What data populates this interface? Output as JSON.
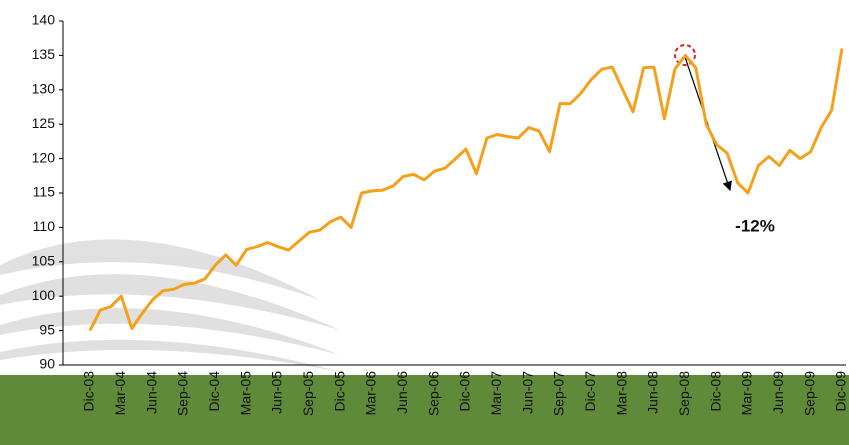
{
  "chart_data": {
    "type": "line",
    "annotation": "-12%",
    "categories": [
      "Dic-03",
      null,
      null,
      "Mar-04",
      null,
      null,
      "Jun-04",
      null,
      null,
      "Sep-04",
      null,
      null,
      "Dic-04",
      null,
      null,
      "Mar-05",
      null,
      null,
      "Jun-05",
      null,
      null,
      "Sep-05",
      null,
      null,
      "Dic-05",
      null,
      null,
      "Mar-06",
      null,
      null,
      "Jun-06",
      null,
      null,
      "Sep-06",
      null,
      null,
      "Dic-06",
      null,
      null,
      "Mar-07",
      null,
      null,
      "Jun-07",
      null,
      null,
      "Sep-07",
      null,
      null,
      "Dic-07",
      null,
      null,
      "Mar-08",
      null,
      null,
      "Jun-08",
      null,
      null,
      "Sep-08",
      null,
      null,
      "Dic-08",
      null,
      null,
      "Mar-09",
      null,
      null,
      "Jun-09",
      null,
      null,
      "Sep-09",
      null,
      null,
      "Dic-09"
    ],
    "values": [
      95,
      98,
      98.5,
      100,
      95.3,
      97.5,
      99.5,
      100.8,
      101,
      101.7,
      101.9,
      102.5,
      104.5,
      106,
      104.5,
      106.8,
      107.2,
      107.8,
      107.2,
      106.7,
      108,
      109.3,
      109.6,
      110.8,
      111.5,
      110,
      115,
      115.3,
      115.4,
      116,
      117.4,
      117.7,
      116.9,
      118.2,
      118.6,
      120,
      121.4,
      117.8,
      123,
      123.5,
      123.2,
      123,
      124.5,
      124,
      121,
      128,
      128,
      129.5,
      131.5,
      133,
      133.3,
      130,
      126.8,
      133.2,
      133.3,
      125.8,
      133,
      135,
      133.2,
      125,
      122,
      120.8,
      116.5,
      115,
      119,
      120.3,
      119,
      121.2,
      120,
      121,
      124.5,
      127,
      136
    ],
    "color": "#f5a01a",
    "ylim": [
      90,
      140
    ],
    "yticks": [
      90,
      95,
      100,
      105,
      110,
      115,
      120,
      125,
      130,
      135,
      140
    ]
  }
}
